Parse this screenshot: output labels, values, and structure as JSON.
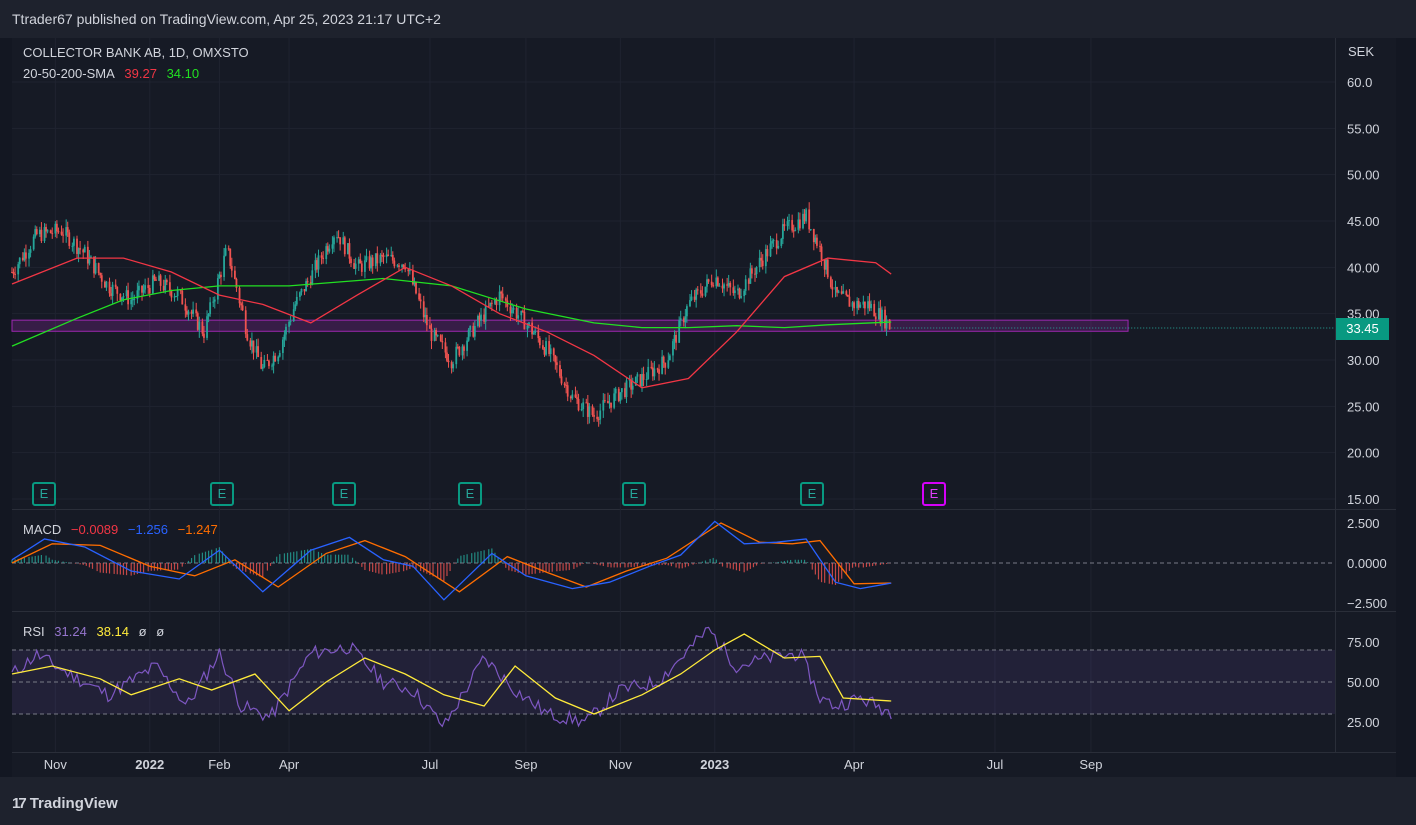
{
  "header": {
    "title": "Ttrader67 published on TradingView.com, Apr 25, 2023 21:17 UTC+2"
  },
  "price_legend": {
    "symbol": "COLLECTOR BANK AB, 1D, OMXSTO",
    "sma_label": "20-50-200-SMA",
    "sma_values": [
      "39.27",
      "34.10"
    ],
    "sma_colors": [
      "#f23645",
      "#22e022"
    ]
  },
  "macd_legend": {
    "label": "MACD",
    "values": [
      "−0.0089",
      "−1.256",
      "−1.247"
    ],
    "colors": [
      "#f23645",
      "#2962ff",
      "#ff6d00"
    ]
  },
  "rsi_legend": {
    "label": "RSI",
    "values": [
      "31.24",
      "38.14",
      "ø",
      "ø"
    ],
    "colors": [
      "#9575cd",
      "#ffeb3b",
      "#d1d4dc",
      "#d1d4dc"
    ]
  },
  "currency": "SEK",
  "last_price": "33.45",
  "earnings_marker": "E",
  "brand": "TradingView",
  "colors": {
    "up": "#26a69a",
    "down": "#ef5350",
    "sma50": "#f23645",
    "sma200": "#22e022",
    "zone": "#9c27b0",
    "macd": "#2962ff",
    "signal": "#ff6d00",
    "rsi": "#7e57c2",
    "rsi_ma": "#ffeb3b"
  },
  "chart_data": [
    {
      "type": "candlestick",
      "title": "COLLECTOR BANK AB, 1D, OMXSTO",
      "ylabel": "SEK",
      "ylim": [
        15,
        62
      ],
      "y_ticks": [
        "15.00",
        "20.00",
        "25.00",
        "30.00",
        "35.00",
        "40.00",
        "45.00",
        "50.00",
        "55.00",
        "60.0"
      ],
      "x_ticks": [
        "Nov",
        "2022",
        "Feb",
        "Apr",
        "Jul",
        "Sep",
        "Nov",
        "2023",
        "Apr",
        "Jul",
        "Sep"
      ],
      "x_tick_dates": [
        "2021-11-01",
        "2022-01-01",
        "2022-02-15",
        "2022-04-01",
        "2022-07-01",
        "2022-09-01",
        "2022-11-01",
        "2023-01-01",
        "2023-04-01",
        "2023-07-01",
        "2023-09-01"
      ],
      "x_range": [
        "2021-10-04",
        "2023-11-15"
      ],
      "close_series": {
        "x": [
          "2021-10-04",
          "2021-10-20",
          "2021-11-05",
          "2021-11-20",
          "2021-12-05",
          "2021-12-20",
          "2022-01-05",
          "2022-01-20",
          "2022-02-05",
          "2022-02-20",
          "2022-03-05",
          "2022-03-15",
          "2022-03-25",
          "2022-04-05",
          "2022-04-15",
          "2022-05-01",
          "2022-05-15",
          "2022-06-01",
          "2022-06-15",
          "2022-07-01",
          "2022-07-15",
          "2022-08-01",
          "2022-08-15",
          "2022-09-01",
          "2022-09-15",
          "2022-10-01",
          "2022-10-15",
          "2022-11-01",
          "2022-11-15",
          "2022-12-01",
          "2022-12-15",
          "2023-01-01",
          "2023-01-15",
          "2023-02-01",
          "2023-02-15",
          "2023-03-01",
          "2023-03-10",
          "2023-03-20",
          "2023-04-01",
          "2023-04-10",
          "2023-04-20",
          "2023-04-25"
        ],
        "y": [
          39.5,
          43.5,
          44.0,
          41.5,
          38.0,
          36.5,
          38.5,
          37.0,
          33.0,
          42.0,
          33.0,
          29.0,
          31.0,
          36.0,
          39.0,
          44.0,
          40.0,
          41.0,
          40.5,
          33.0,
          30.0,
          34.0,
          37.0,
          34.0,
          31.0,
          26.0,
          24.0,
          26.5,
          28.0,
          30.0,
          36.0,
          39.0,
          37.0,
          41.0,
          44.0,
          45.5,
          42.0,
          37.0,
          36.0,
          36.0,
          34.5,
          33.45
        ]
      },
      "sma_50": {
        "x": [
          "2021-10-04",
          "2021-11-15",
          "2021-12-15",
          "2022-01-15",
          "2022-02-15",
          "2022-03-15",
          "2022-04-15",
          "2022-05-15",
          "2022-06-15",
          "2022-07-15",
          "2022-08-15",
          "2022-09-15",
          "2022-10-15",
          "2022-11-15",
          "2022-12-15",
          "2023-01-15",
          "2023-02-15",
          "2023-03-15",
          "2023-04-15",
          "2023-04-25"
        ],
        "y": [
          38.2,
          41.0,
          41.0,
          39.5,
          37.0,
          36.0,
          34.0,
          37.0,
          40.0,
          38.0,
          35.0,
          33.0,
          30.5,
          27.0,
          28.0,
          33.0,
          39.0,
          41.0,
          40.5,
          39.27
        ]
      },
      "sma_200": {
        "x": [
          "2021-10-04",
          "2021-11-15",
          "2021-12-15",
          "2022-01-15",
          "2022-02-15",
          "2022-04-01",
          "2022-06-01",
          "2022-07-15",
          "2022-09-01",
          "2022-10-15",
          "2022-11-15",
          "2022-12-15",
          "2023-01-15",
          "2023-02-15",
          "2023-03-15",
          "2023-04-25"
        ],
        "y": [
          31.5,
          34.5,
          36.5,
          37.5,
          38.0,
          38.0,
          38.8,
          38.0,
          35.5,
          34.0,
          33.5,
          33.5,
          33.7,
          33.5,
          33.8,
          34.1
        ]
      },
      "support_zone": [
        33.1,
        34.3
      ],
      "last_price": 33.45
    },
    {
      "type": "line",
      "title": "MACD",
      "ylim": [
        -2.8,
        2.8
      ],
      "y_ticks": [
        "2.500",
        "0.0000",
        "−2.500"
      ],
      "series": [
        {
          "name": "MACD",
          "x": [
            "2021-10-04",
            "2021-10-25",
            "2021-11-20",
            "2021-12-20",
            "2022-01-20",
            "2022-02-15",
            "2022-03-15",
            "2022-04-15",
            "2022-05-10",
            "2022-06-01",
            "2022-06-20",
            "2022-07-10",
            "2022-08-10",
            "2022-09-01",
            "2022-10-01",
            "2022-10-25",
            "2022-11-20",
            "2022-12-10",
            "2023-01-01",
            "2023-01-20",
            "2023-02-10",
            "2023-03-01",
            "2023-03-20",
            "2023-04-05",
            "2023-04-25"
          ],
          "y": [
            0.2,
            1.5,
            1.0,
            -0.5,
            -1.0,
            0.8,
            -1.8,
            0.8,
            1.6,
            0.2,
            -0.2,
            -2.3,
            0.6,
            -0.8,
            -1.6,
            -1.2,
            -0.2,
            0.5,
            2.6,
            1.2,
            1.3,
            1.5,
            -1.2,
            -1.6,
            -1.256
          ]
        },
        {
          "name": "Signal",
          "x": [
            "2021-10-04",
            "2021-10-30",
            "2021-11-30",
            "2022-01-01",
            "2022-01-30",
            "2022-02-25",
            "2022-03-25",
            "2022-04-25",
            "2022-05-20",
            "2022-06-15",
            "2022-07-20",
            "2022-08-20",
            "2022-09-15",
            "2022-10-10",
            "2022-11-05",
            "2022-12-01",
            "2023-01-05",
            "2023-01-30",
            "2023-02-20",
            "2023-03-10",
            "2023-04-01",
            "2023-04-25"
          ],
          "y": [
            0.0,
            1.2,
            1.1,
            -0.2,
            -0.8,
            0.2,
            -1.5,
            0.6,
            1.4,
            0.4,
            -1.8,
            0.4,
            -0.6,
            -1.5,
            -0.5,
            0.3,
            2.5,
            1.3,
            1.2,
            1.4,
            -1.3,
            -1.247
          ]
        }
      ]
    },
    {
      "type": "line",
      "title": "RSI",
      "ylim": [
        20,
        85
      ],
      "y_ticks": [
        "75.00",
        "50.00",
        "25.00"
      ],
      "bands": [
        30,
        50,
        70
      ],
      "series": [
        {
          "name": "RSI",
          "x": [
            "2021-10-04",
            "2021-10-20",
            "2021-11-10",
            "2021-12-05",
            "2022-01-05",
            "2022-01-25",
            "2022-02-15",
            "2022-03-01",
            "2022-03-20",
            "2022-04-15",
            "2022-05-10",
            "2022-06-01",
            "2022-06-20",
            "2022-07-10",
            "2022-08-05",
            "2022-08-25",
            "2022-09-15",
            "2022-10-10",
            "2022-11-01",
            "2022-11-25",
            "2022-12-15",
            "2022-12-28",
            "2023-01-15",
            "2023-02-05",
            "2023-02-25",
            "2023-03-10",
            "2023-03-20",
            "2023-04-05",
            "2023-04-25"
          ],
          "y": [
            55,
            67,
            55,
            42,
            60,
            35,
            68,
            35,
            28,
            68,
            72,
            50,
            45,
            22,
            65,
            45,
            30,
            25,
            45,
            50,
            70,
            83,
            60,
            65,
            68,
            40,
            35,
            40,
            31.24
          ]
        },
        {
          "name": "RSI-based MA",
          "x": [
            "2021-10-04",
            "2021-10-30",
            "2021-11-30",
            "2021-12-20",
            "2022-01-20",
            "2022-02-10",
            "2022-03-10",
            "2022-04-01",
            "2022-04-25",
            "2022-05-20",
            "2022-06-15",
            "2022-07-10",
            "2022-08-05",
            "2022-08-25",
            "2022-09-20",
            "2022-10-15",
            "2022-11-15",
            "2022-12-10",
            "2023-01-01",
            "2023-01-20",
            "2023-02-15",
            "2023-03-10",
            "2023-03-25",
            "2023-04-25"
          ],
          "y": [
            55,
            60,
            52,
            42,
            52,
            45,
            55,
            32,
            50,
            65,
            55,
            42,
            35,
            60,
            40,
            30,
            42,
            55,
            70,
            80,
            65,
            66,
            40,
            38.14
          ]
        }
      ]
    }
  ]
}
